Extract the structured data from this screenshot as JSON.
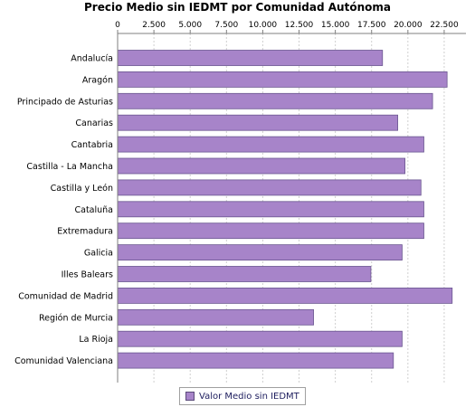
{
  "chart_data": {
    "type": "bar",
    "orientation": "horizontal",
    "title": "Precio Medio sin IEDMT por Comunidad Autónoma",
    "categories": [
      "Andalucía",
      "Aragón",
      "Principado de Asturias",
      "Canarias",
      "Cantabria",
      "Castilla - La Mancha",
      "Castilla y León",
      "Cataluña",
      "Extremadura",
      "Galicia",
      "Illes Balears",
      "Comunidad de Madrid",
      "Región de Murcia",
      "La Rioja",
      "Comunidad Valenciana"
    ],
    "series": [
      {
        "name": "Valor Medio sin IEDMT",
        "values": [
          18250,
          22700,
          21700,
          19300,
          21100,
          19800,
          20900,
          21100,
          21100,
          19600,
          17450,
          23050,
          13500,
          19600,
          19000
        ],
        "color": "#a784c9"
      }
    ],
    "x_ticks": [
      "0",
      "2.500",
      "5.000",
      "7.500",
      "10.000",
      "12.500",
      "15.000",
      "17.500",
      "20.000",
      "22.500"
    ],
    "xlim": [
      0,
      24000
    ],
    "grid": true,
    "legend_position": "bottom"
  }
}
